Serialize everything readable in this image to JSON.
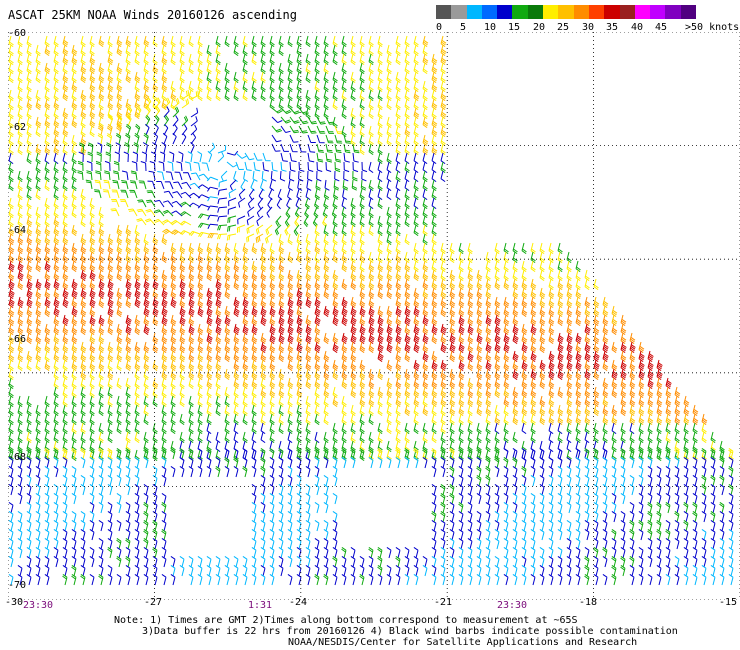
{
  "title": "ASCAT 25KM NOAA Winds 20160126 ascending",
  "colorbar": {
    "colors": [
      "#555555",
      "#9a9a9a",
      "#00b7ff",
      "#006aff",
      "#0000cc",
      "#10aa10",
      "#0a7a0a",
      "#ffee00",
      "#ffc000",
      "#ff8c00",
      "#ff4000",
      "#cc0000",
      "#9a2020",
      "#ff00ff",
      "#c000ff",
      "#8000c0",
      "#500080"
    ],
    "labels": [
      "0",
      "5",
      "10",
      "15",
      "20",
      "25",
      "30",
      "35",
      "40",
      "45",
      ">50 knots"
    ]
  },
  "axes": {
    "lat_labels": [
      "-60",
      "-62",
      "-64",
      "-66",
      "-68",
      "-70"
    ],
    "lon_labels": [
      "-30",
      "-27",
      "-24",
      "-21",
      "-18",
      "-15"
    ],
    "lat_range": [
      -70,
      -60
    ],
    "lon_range": [
      -30,
      -15
    ],
    "grid": "dotted"
  },
  "time_labels": [
    "23:30",
    "1:31",
    "23:30"
  ],
  "notes": [
    "Note: 1) Times are GMT 2)Times along bottom correspond to measurement at ~65S",
    "3)Data buffer is 22 hrs from 20160126 4) Black wind barbs indicate possible contamination",
    "NOAA/NESDIS/Center for Satellite Applications and Research"
  ],
  "wind_colors": {
    "5-10": "#00b7ff",
    "10-15": "#0000cc",
    "15-20": "#10aa10",
    "20-25": "#ffee00",
    "25-30": "#ffc000",
    "30-35": "#ff8c00",
    "35-40": "#cc0000"
  }
}
